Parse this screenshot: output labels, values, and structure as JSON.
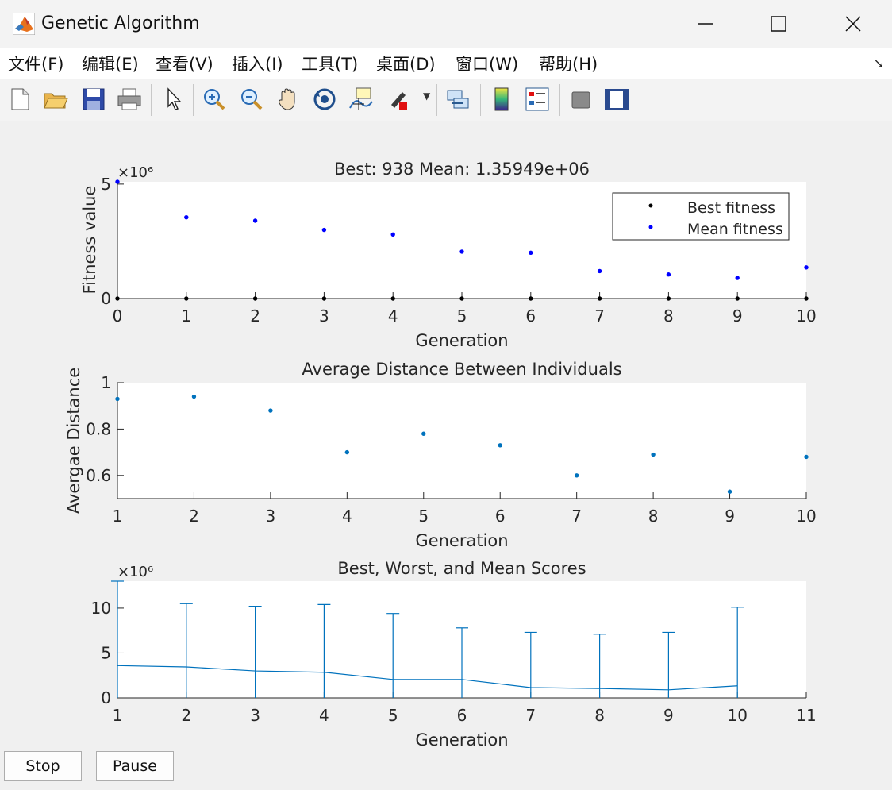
{
  "window": {
    "title": "Genetic Algorithm"
  },
  "menu": [
    "文件(F)",
    "编辑(E)",
    "查看(V)",
    "插入(I)",
    "工具(T)",
    "桌面(D)",
    "窗口(W)",
    "帮助(H)"
  ],
  "toolbar": [
    {
      "icon": "new-figure-icon"
    },
    {
      "icon": "open-folder-icon"
    },
    {
      "icon": "save-icon"
    },
    {
      "icon": "print-icon"
    },
    {
      "icon": "pointer-icon"
    },
    {
      "icon": "zoom-in-icon"
    },
    {
      "icon": "zoom-out-icon"
    },
    {
      "icon": "pan-hand-icon"
    },
    {
      "icon": "rotate-3d-icon"
    },
    {
      "icon": "data-cursor-icon"
    },
    {
      "icon": "brush-icon"
    },
    {
      "icon": "link-plot-icon"
    },
    {
      "icon": "colorbar-icon"
    },
    {
      "icon": "legend-icon"
    },
    {
      "icon": "hide-plot-tools-icon"
    },
    {
      "icon": "show-plot-tools-icon"
    }
  ],
  "buttons": {
    "stop": "Stop",
    "pause": "Pause"
  },
  "chart_data": [
    {
      "type": "scatter",
      "title": "Best: 938 Mean: 1.35949e+06",
      "xlabel": "Generation",
      "ylabel": "Fitness value",
      "y_exponent": "×10⁶",
      "xlim": [
        0,
        10
      ],
      "ylim": [
        0,
        5.1
      ],
      "xticks": [
        "0",
        "1",
        "2",
        "3",
        "4",
        "5",
        "6",
        "7",
        "8",
        "9",
        "10"
      ],
      "yticks": [
        "0",
        "5"
      ],
      "legend": {
        "placement": "top-right",
        "entries": [
          "Best fitness",
          "Mean fitness"
        ]
      },
      "series": [
        {
          "name": "Best fitness",
          "color": "#000000",
          "x": [
            0,
            1,
            2,
            3,
            4,
            5,
            6,
            7,
            8,
            9,
            10
          ],
          "y": [
            0,
            0,
            0,
            0,
            0,
            0,
            0,
            0,
            0,
            0,
            0
          ]
        },
        {
          "name": "Mean fitness",
          "color": "#0000ff",
          "x": [
            0,
            1,
            2,
            3,
            4,
            5,
            6,
            7,
            8,
            9,
            10
          ],
          "y": [
            5.1,
            3.55,
            3.4,
            3.0,
            2.8,
            2.05,
            2.0,
            1.2,
            1.05,
            0.9,
            1.36
          ]
        }
      ]
    },
    {
      "type": "scatter",
      "title": "Average Distance Between Individuals",
      "xlabel": "Generation",
      "ylabel": "Avergae Distance",
      "xlim": [
        1,
        10
      ],
      "ylim": [
        0.5,
        1
      ],
      "xticks": [
        "1",
        "2",
        "3",
        "4",
        "5",
        "6",
        "7",
        "8",
        "9",
        "10"
      ],
      "yticks": [
        "0.6",
        "0.8",
        "1"
      ],
      "series": [
        {
          "color": "#0072bd",
          "x": [
            1,
            2,
            3,
            4,
            5,
            6,
            7,
            8,
            9,
            10
          ],
          "y": [
            0.93,
            0.94,
            0.88,
            0.7,
            0.78,
            0.73,
            0.6,
            0.69,
            0.53,
            0.68
          ]
        }
      ]
    },
    {
      "type": "line",
      "title": "Best, Worst, and Mean Scores",
      "xlabel": "Generation",
      "y_exponent": "×10⁶",
      "xlim": [
        1,
        11
      ],
      "ylim": [
        0,
        13
      ],
      "xticks": [
        "1",
        "2",
        "3",
        "4",
        "5",
        "6",
        "7",
        "8",
        "9",
        "10",
        "11"
      ],
      "yticks": [
        "0",
        "5",
        "10"
      ],
      "color": "#0072bd",
      "x": [
        1,
        2,
        3,
        4,
        5,
        6,
        7,
        8,
        9,
        10
      ],
      "best": [
        0,
        0,
        0,
        0,
        0,
        0,
        0,
        0,
        0,
        0
      ],
      "worst": [
        13,
        10.5,
        10.2,
        10.4,
        9.4,
        7.8,
        7.3,
        7.1,
        7.3,
        10.1
      ],
      "mean": [
        3.6,
        3.45,
        3.0,
        2.85,
        2.05,
        2.05,
        1.15,
        1.05,
        0.9,
        1.35
      ]
    }
  ]
}
